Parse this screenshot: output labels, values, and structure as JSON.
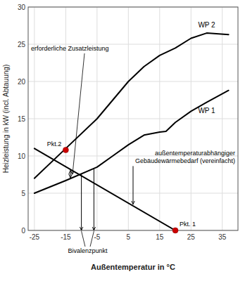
{
  "chart_data": {
    "type": "line",
    "xlabel": "Außentemperatur in °C",
    "ylabel": "Heizleistung in kW (incl. Abtauung)",
    "xlim": [
      -27,
      40
    ],
    "ylim": [
      0,
      30
    ],
    "xticks": [
      -25,
      -15,
      -5,
      5,
      15,
      25,
      35
    ],
    "yticks": [
      0,
      5,
      10,
      15,
      20,
      25,
      30
    ],
    "grid": true,
    "series": [
      {
        "name": "WP 2",
        "type": "line",
        "color": "#000000",
        "x": [
          -25,
          -15,
          -5,
          0,
          5,
          10,
          15,
          20,
          25,
          30,
          37
        ],
        "values": [
          7.0,
          11.0,
          15.0,
          17.5,
          20.0,
          22.0,
          23.5,
          24.5,
          25.8,
          26.5,
          26.3
        ]
      },
      {
        "name": "WP 1",
        "type": "line",
        "color": "#000000",
        "x": [
          -25,
          -15,
          -5,
          0,
          5,
          10,
          15,
          17,
          20,
          25,
          30,
          37
        ],
        "values": [
          5.0,
          6.7,
          8.5,
          10.0,
          11.5,
          12.8,
          13.2,
          13.3,
          14.5,
          16.0,
          17.2,
          18.8
        ]
      },
      {
        "name": "außentemperaturabhängiger\nGebäudewärmebedarf (vereinfacht)",
        "type": "line",
        "color": "#000000",
        "x": [
          -25,
          20
        ],
        "values": [
          11.0,
          0.0
        ]
      },
      {
        "type": "scatter",
        "marker": "circle",
        "color": "#cc0000",
        "x": [
          20,
          -15
        ],
        "values": [
          0.0,
          10.8
        ]
      }
    ],
    "annotations": [
      {
        "text": "Pkt. 1",
        "x": 20,
        "y": 0.0
      },
      {
        "text": "Pkt.2",
        "x": -15,
        "y": 10.8
      },
      {
        "text": "Bivalenzpunkt",
        "x": [
          -10,
          -6
        ],
        "y": [
          7.6,
          8.32
        ]
      },
      {
        "text": "erforderliche Zusatzleistung",
        "x": -13.5,
        "y": [
          7.06,
          8.0667
        ]
      }
    ]
  }
}
